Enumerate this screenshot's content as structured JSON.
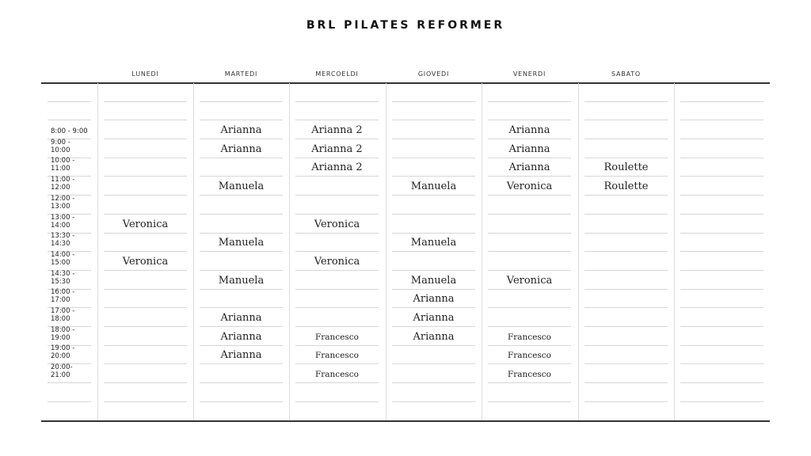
{
  "title": "BRL PILATES REFORMER",
  "times": [
    "8:00 - 9:00",
    "9:00 - 10:00",
    "10:00 - 11:00",
    "11:00 - 12:00",
    "12:00 - 13:00",
    "13:00 - 14:00",
    "13:30 - 14:30",
    "14:00 - 15:00",
    "14:30 - 15:30",
    "16:00 - 17:00",
    "17:00 - 18:00",
    "18:00 - 19:00",
    "19:00 - 20:00",
    "20:00- 21:00"
  ],
  "days": [
    {
      "label": "LUNEDI",
      "slots": [
        "",
        "",
        "",
        "",
        "",
        "Veronica",
        "",
        "Veronica",
        "",
        "",
        "",
        "",
        "",
        ""
      ]
    },
    {
      "label": "MARTEDI",
      "slots": [
        "Arianna",
        "Arianna",
        "",
        "Manuela",
        "",
        "",
        "Manuela",
        "",
        "Manuela",
        "",
        "Arianna",
        "Arianna",
        "Arianna",
        ""
      ]
    },
    {
      "label": "MERCOELDI",
      "slots": [
        "Arianna 2",
        "Arianna 2",
        "Arianna 2",
        "",
        "",
        "Veronica",
        "",
        "Veronica",
        "",
        "",
        "",
        "Francesco",
        "Francesco",
        "Francesco"
      ]
    },
    {
      "label": "GIOVEDI",
      "slots": [
        "",
        "",
        "",
        "Manuela",
        "",
        "",
        "Manuela",
        "",
        "Manuela",
        "Arianna",
        "Arianna",
        "Arianna",
        "",
        ""
      ]
    },
    {
      "label": "VENERDI",
      "slots": [
        "Arianna",
        "Arianna",
        "Arianna",
        "Veronica",
        "",
        "",
        "",
        "",
        "Veronica",
        "",
        "",
        "Francesco",
        "Francesco",
        "Francesco"
      ]
    },
    {
      "label": "SABATO",
      "slots": [
        "",
        "",
        "Roulette",
        "Roulette",
        "",
        "",
        "",
        "",
        "",
        "",
        "",
        "",
        "",
        ""
      ]
    },
    {
      "label": "",
      "slots": [
        "",
        "",
        "",
        "",
        "",
        "",
        "",
        "",
        "",
        "",
        "",
        "",
        "",
        ""
      ]
    }
  ]
}
